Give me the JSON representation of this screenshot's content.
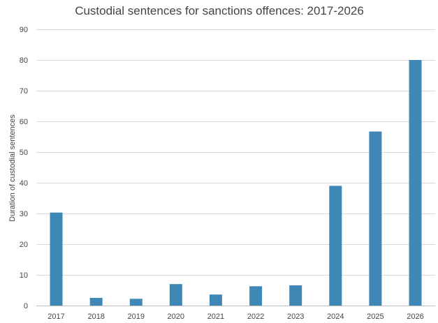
{
  "chart_data": {
    "type": "bar",
    "title": "Custodial sentences for sanctions offences: 2017-2026",
    "xlabel": "",
    "ylabel": "Duration of custodial sentences",
    "categories": [
      "2017",
      "2018",
      "2019",
      "2020",
      "2021",
      "2022",
      "2023",
      "2024",
      "2025",
      "2026"
    ],
    "values": [
      30.3,
      2.5,
      2.2,
      7.0,
      3.6,
      6.3,
      6.6,
      39.0,
      56.7,
      80.0
    ],
    "ylim": [
      0,
      90
    ],
    "yticks": [
      "0",
      "10",
      "20",
      "30",
      "40",
      "50",
      "60",
      "70",
      "80",
      "90"
    ],
    "grid": true,
    "legend": "none",
    "bar_color": "#3f87b4",
    "grid_color": "#d9d9d9"
  }
}
